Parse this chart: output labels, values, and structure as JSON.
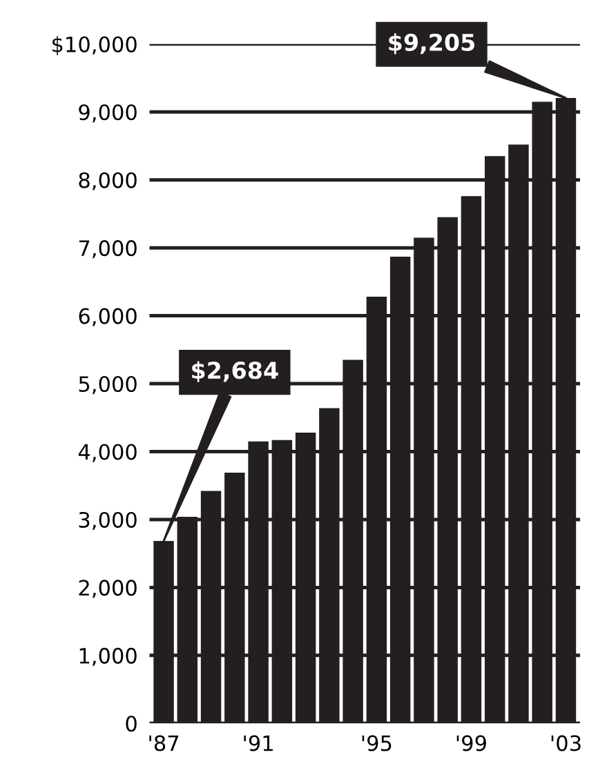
{
  "chart_data": {
    "type": "bar",
    "categories": [
      "'87",
      null,
      null,
      null,
      "'91",
      null,
      null,
      null,
      null,
      "'95",
      null,
      null,
      null,
      "'99",
      null,
      null,
      null,
      "'03"
    ],
    "values": [
      2684,
      3040,
      3420,
      3690,
      4150,
      4170,
      4280,
      4640,
      5350,
      6280,
      6870,
      7150,
      7450,
      7760,
      8350,
      8520,
      9150,
      9205
    ],
    "color": "#231f20",
    "ylim": [
      0,
      10000
    ],
    "yticks": [
      0,
      {
        "value": 1000,
        "label": "1,000"
      },
      {
        "value": 2000,
        "label": "2,000"
      },
      {
        "value": 3000,
        "label": "3,000"
      },
      {
        "value": 4000,
        "label": "4,000"
      },
      {
        "value": 5000,
        "label": "5,000"
      },
      {
        "value": 6000,
        "label": "6,000"
      },
      {
        "value": 7000,
        "label": "7,000"
      },
      {
        "value": 8000,
        "label": "8,000"
      },
      {
        "value": 9000,
        "label": "9,000"
      },
      {
        "value": 10000,
        "label": "$10,000"
      }
    ],
    "grid": "y",
    "annotations": [
      {
        "text": "$2,684",
        "x": "'87",
        "y": 2684
      },
      {
        "text": "$9,205",
        "x": "'03",
        "y": 9205
      }
    ]
  }
}
